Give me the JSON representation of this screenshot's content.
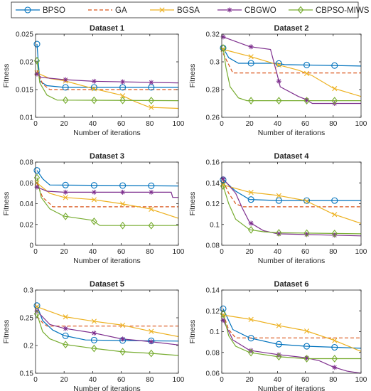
{
  "legend": {
    "position": "top",
    "entries": [
      {
        "name": "BPSO",
        "color": "#0072BD",
        "line": "solid",
        "marker": "circle"
      },
      {
        "name": "GA",
        "color": "#D95319",
        "line": "dashed",
        "marker": "none"
      },
      {
        "name": "BGSA",
        "color": "#EDB120",
        "line": "solid",
        "marker": "x"
      },
      {
        "name": "CBGWO",
        "color": "#7E2F8E",
        "line": "solid",
        "marker": "asterisk"
      },
      {
        "name": "CBPSO-MIWS",
        "color": "#77AC30",
        "line": "solid",
        "marker": "diamond"
      }
    ]
  },
  "chart_data": [
    {
      "type": "line",
      "title": "Dataset 1",
      "xlabel": "Number of iterations",
      "ylabel": "Fitness",
      "xlim": [
        0,
        100
      ],
      "ylim": [
        0.01,
        0.025
      ],
      "xticks": [
        0,
        20,
        40,
        60,
        80,
        100
      ],
      "yticks": [
        0.01,
        0.015,
        0.02,
        0.025
      ],
      "xtick_labels": [
        "0",
        "20",
        "40",
        "60",
        "80",
        "100"
      ],
      "ytick_labels": [
        "0.01",
        "0.015",
        "0.02",
        "0.025"
      ],
      "grid": false,
      "series": [
        {
          "name": "BPSO",
          "points": [
            [
              1,
              0.0232
            ],
            [
              3,
              0.0165
            ],
            [
              8,
              0.0157
            ],
            [
              20,
              0.0154
            ],
            [
              100,
              0.0154
            ]
          ]
        },
        {
          "name": "GA",
          "points": [
            [
              1,
              0.0185
            ],
            [
              5,
              0.016
            ],
            [
              10,
              0.015
            ],
            [
              100,
              0.015
            ]
          ]
        },
        {
          "name": "BGSA",
          "points": [
            [
              1,
              0.018
            ],
            [
              10,
              0.017
            ],
            [
              20,
              0.0166
            ],
            [
              40,
              0.0152
            ],
            [
              60,
              0.014
            ],
            [
              70,
              0.0128
            ],
            [
              80,
              0.0118
            ],
            [
              100,
              0.0116
            ]
          ]
        },
        {
          "name": "CBGWO",
          "points": [
            [
              1,
              0.0178
            ],
            [
              4,
              0.0172
            ],
            [
              20,
              0.0168
            ],
            [
              40,
              0.0165
            ],
            [
              100,
              0.0162
            ]
          ]
        },
        {
          "name": "CBPSO-MIWS",
          "points": [
            [
              1,
              0.0202
            ],
            [
              3,
              0.0162
            ],
            [
              8,
              0.014
            ],
            [
              15,
              0.0131
            ],
            [
              100,
              0.013
            ]
          ]
        }
      ]
    },
    {
      "type": "line",
      "title": "Dataset 2",
      "xlabel": "Number of iterations",
      "ylabel": "Fitness",
      "xlim": [
        0,
        100
      ],
      "ylim": [
        0.26,
        0.32
      ],
      "xticks": [
        0,
        20,
        40,
        60,
        80,
        100
      ],
      "yticks": [
        0.26,
        0.28,
        0.3,
        0.32
      ],
      "xtick_labels": [
        "0",
        "20",
        "40",
        "60",
        "80",
        "100"
      ],
      "ytick_labels": [
        "0.26",
        "0.28",
        "0.3",
        "0.32"
      ],
      "grid": false,
      "series": [
        {
          "name": "BPSO",
          "points": [
            [
              1,
              0.31
            ],
            [
              5,
              0.303
            ],
            [
              12,
              0.299
            ],
            [
              40,
              0.299
            ],
            [
              45,
              0.298
            ],
            [
              100,
              0.297
            ]
          ]
        },
        {
          "name": "GA",
          "points": [
            [
              1,
              0.306
            ],
            [
              5,
              0.298
            ],
            [
              8,
              0.292
            ],
            [
              100,
              0.292
            ]
          ]
        },
        {
          "name": "BGSA",
          "points": [
            [
              1,
              0.309
            ],
            [
              20,
              0.304
            ],
            [
              40,
              0.298
            ],
            [
              55,
              0.294
            ],
            [
              65,
              0.29
            ],
            [
              80,
              0.281
            ],
            [
              100,
              0.275
            ]
          ]
        },
        {
          "name": "CBGWO",
          "points": [
            [
              1,
              0.318
            ],
            [
              20,
              0.311
            ],
            [
              35,
              0.309
            ],
            [
              40,
              0.29
            ],
            [
              42,
              0.282
            ],
            [
              55,
              0.275
            ],
            [
              60,
              0.273
            ],
            [
              65,
              0.27
            ],
            [
              100,
              0.27
            ]
          ]
        },
        {
          "name": "CBPSO-MIWS",
          "points": [
            [
              1,
              0.31
            ],
            [
              3,
              0.296
            ],
            [
              6,
              0.282
            ],
            [
              12,
              0.274
            ],
            [
              18,
              0.272
            ],
            [
              100,
              0.272
            ]
          ]
        }
      ]
    },
    {
      "type": "line",
      "title": "Dataset 3",
      "xlabel": "Number of iterations",
      "ylabel": "Fitness",
      "xlim": [
        0,
        100
      ],
      "ylim": [
        0,
        0.08
      ],
      "xticks": [
        0,
        20,
        40,
        60,
        80,
        100
      ],
      "yticks": [
        0,
        0.02,
        0.04,
        0.06,
        0.08
      ],
      "xtick_labels": [
        "0",
        "20",
        "40",
        "60",
        "80",
        "100"
      ],
      "ytick_labels": [
        "0",
        "0.02",
        "0.04",
        "0.06",
        "0.08"
      ],
      "grid": false,
      "series": [
        {
          "name": "BPSO",
          "points": [
            [
              1,
              0.072
            ],
            [
              5,
              0.064
            ],
            [
              10,
              0.058
            ],
            [
              100,
              0.057
            ]
          ]
        },
        {
          "name": "GA",
          "points": [
            [
              1,
              0.06
            ],
            [
              5,
              0.046
            ],
            [
              10,
              0.04
            ],
            [
              12,
              0.037
            ],
            [
              100,
              0.037
            ]
          ]
        },
        {
          "name": "BGSA",
          "points": [
            [
              1,
              0.06
            ],
            [
              10,
              0.05
            ],
            [
              20,
              0.046
            ],
            [
              40,
              0.044
            ],
            [
              60,
              0.04
            ],
            [
              80,
              0.035
            ],
            [
              100,
              0.026
            ]
          ]
        },
        {
          "name": "CBGWO",
          "points": [
            [
              1,
              0.056
            ],
            [
              8,
              0.052
            ],
            [
              20,
              0.051
            ],
            [
              95,
              0.051
            ],
            [
              96,
              0.046
            ],
            [
              100,
              0.046
            ]
          ]
        },
        {
          "name": "CBPSO-MIWS",
          "points": [
            [
              1,
              0.065
            ],
            [
              4,
              0.046
            ],
            [
              10,
              0.035
            ],
            [
              20,
              0.028
            ],
            [
              40,
              0.024
            ],
            [
              45,
              0.019
            ],
            [
              100,
              0.019
            ]
          ]
        }
      ]
    },
    {
      "type": "line",
      "title": "Dataset 4",
      "xlabel": "Number of iterations",
      "ylabel": "Fitness",
      "xlim": [
        0,
        100
      ],
      "ylim": [
        0.08,
        0.16
      ],
      "xticks": [
        0,
        20,
        40,
        60,
        80,
        100
      ],
      "yticks": [
        0.08,
        0.1,
        0.12,
        0.14,
        0.16
      ],
      "xtick_labels": [
        "0",
        "20",
        "40",
        "60",
        "80",
        "100"
      ],
      "ytick_labels": [
        "0.08",
        "0.1",
        "0.12",
        "0.14",
        "0.16"
      ],
      "grid": false,
      "series": [
        {
          "name": "BPSO",
          "points": [
            [
              1,
              0.143
            ],
            [
              10,
              0.132
            ],
            [
              20,
              0.124
            ],
            [
              40,
              0.123
            ],
            [
              100,
              0.123
            ]
          ]
        },
        {
          "name": "GA",
          "points": [
            [
              1,
              0.142
            ],
            [
              5,
              0.13
            ],
            [
              10,
              0.12
            ],
            [
              15,
              0.117
            ],
            [
              100,
              0.117
            ]
          ]
        },
        {
          "name": "BGSA",
          "points": [
            [
              1,
              0.138
            ],
            [
              20,
              0.131
            ],
            [
              40,
              0.128
            ],
            [
              60,
              0.123
            ],
            [
              80,
              0.11
            ],
            [
              100,
              0.101
            ]
          ]
        },
        {
          "name": "CBGWO",
          "points": [
            [
              1,
              0.144
            ],
            [
              10,
              0.13
            ],
            [
              15,
              0.115
            ],
            [
              20,
              0.102
            ],
            [
              30,
              0.094
            ],
            [
              40,
              0.091
            ],
            [
              100,
              0.089
            ]
          ]
        },
        {
          "name": "CBPSO-MIWS",
          "points": [
            [
              1,
              0.137
            ],
            [
              5,
              0.12
            ],
            [
              10,
              0.105
            ],
            [
              20,
              0.095
            ],
            [
              30,
              0.093
            ],
            [
              40,
              0.092
            ],
            [
              100,
              0.091
            ]
          ]
        }
      ]
    },
    {
      "type": "line",
      "title": "Dataset 5",
      "xlabel": "Number of iterations",
      "ylabel": "Fitness",
      "xlim": [
        0,
        100
      ],
      "ylim": [
        0.15,
        0.3
      ],
      "xticks": [
        0,
        20,
        40,
        60,
        80,
        100
      ],
      "yticks": [
        0.15,
        0.2,
        0.25,
        0.3
      ],
      "xtick_labels": [
        "0",
        "20",
        "40",
        "60",
        "80",
        "100"
      ],
      "ytick_labels": [
        "0.15",
        "0.2",
        "0.25",
        "0.3"
      ],
      "grid": false,
      "series": [
        {
          "name": "BPSO",
          "points": [
            [
              1,
              0.272
            ],
            [
              5,
              0.245
            ],
            [
              12,
              0.228
            ],
            [
              20,
              0.218
            ],
            [
              35,
              0.21
            ],
            [
              60,
              0.209
            ],
            [
              100,
              0.208
            ]
          ]
        },
        {
          "name": "GA",
          "points": [
            [
              1,
              0.252
            ],
            [
              5,
              0.241
            ],
            [
              8,
              0.235
            ],
            [
              100,
              0.235
            ]
          ]
        },
        {
          "name": "BGSA",
          "points": [
            [
              1,
              0.27
            ],
            [
              20,
              0.252
            ],
            [
              40,
              0.244
            ],
            [
              60,
              0.237
            ],
            [
              80,
              0.226
            ],
            [
              100,
              0.216
            ]
          ]
        },
        {
          "name": "CBGWO",
          "points": [
            [
              1,
              0.262
            ],
            [
              10,
              0.238
            ],
            [
              20,
              0.231
            ],
            [
              40,
              0.223
            ],
            [
              60,
              0.212
            ],
            [
              80,
              0.207
            ],
            [
              100,
              0.201
            ]
          ]
        },
        {
          "name": "CBPSO-MIWS",
          "points": [
            [
              1,
              0.257
            ],
            [
              5,
              0.225
            ],
            [
              10,
              0.212
            ],
            [
              20,
              0.202
            ],
            [
              40,
              0.195
            ],
            [
              60,
              0.189
            ],
            [
              80,
              0.186
            ],
            [
              100,
              0.182
            ]
          ]
        }
      ]
    },
    {
      "type": "line",
      "title": "Dataset 6",
      "xlabel": "Number of iterations",
      "ylabel": "Fitness",
      "xlim": [
        0,
        100
      ],
      "ylim": [
        0.06,
        0.14
      ],
      "xticks": [
        0,
        20,
        40,
        60,
        80,
        100
      ],
      "yticks": [
        0.06,
        0.08,
        0.1,
        0.12,
        0.14
      ],
      "xtick_labels": [
        "0",
        "20",
        "40",
        "60",
        "80",
        "100"
      ],
      "ytick_labels": [
        "0.06",
        "0.08",
        "0.1",
        "0.12",
        "0.14"
      ],
      "grid": false,
      "series": [
        {
          "name": "BPSO",
          "points": [
            [
              1,
              0.122
            ],
            [
              8,
              0.102
            ],
            [
              20,
              0.094
            ],
            [
              40,
              0.088
            ],
            [
              60,
              0.086
            ],
            [
              80,
              0.085
            ],
            [
              100,
              0.084
            ]
          ]
        },
        {
          "name": "GA",
          "points": [
            [
              1,
              0.117
            ],
            [
              5,
              0.102
            ],
            [
              10,
              0.094
            ],
            [
              100,
              0.094
            ]
          ]
        },
        {
          "name": "BGSA",
          "points": [
            [
              1,
              0.116
            ],
            [
              20,
              0.112
            ],
            [
              40,
              0.106
            ],
            [
              60,
              0.101
            ],
            [
              80,
              0.092
            ],
            [
              100,
              0.081
            ]
          ]
        },
        {
          "name": "CBGWO",
          "points": [
            [
              1,
              0.111
            ],
            [
              8,
              0.092
            ],
            [
              20,
              0.082
            ],
            [
              40,
              0.078
            ],
            [
              60,
              0.075
            ],
            [
              70,
              0.072
            ],
            [
              80,
              0.066
            ],
            [
              90,
              0.062
            ],
            [
              100,
              0.06
            ]
          ]
        },
        {
          "name": "CBPSO-MIWS",
          "points": [
            [
              1,
              0.117
            ],
            [
              5,
              0.096
            ],
            [
              10,
              0.086
            ],
            [
              20,
              0.08
            ],
            [
              40,
              0.076
            ],
            [
              60,
              0.074
            ],
            [
              100,
              0.074
            ]
          ]
        }
      ]
    }
  ]
}
